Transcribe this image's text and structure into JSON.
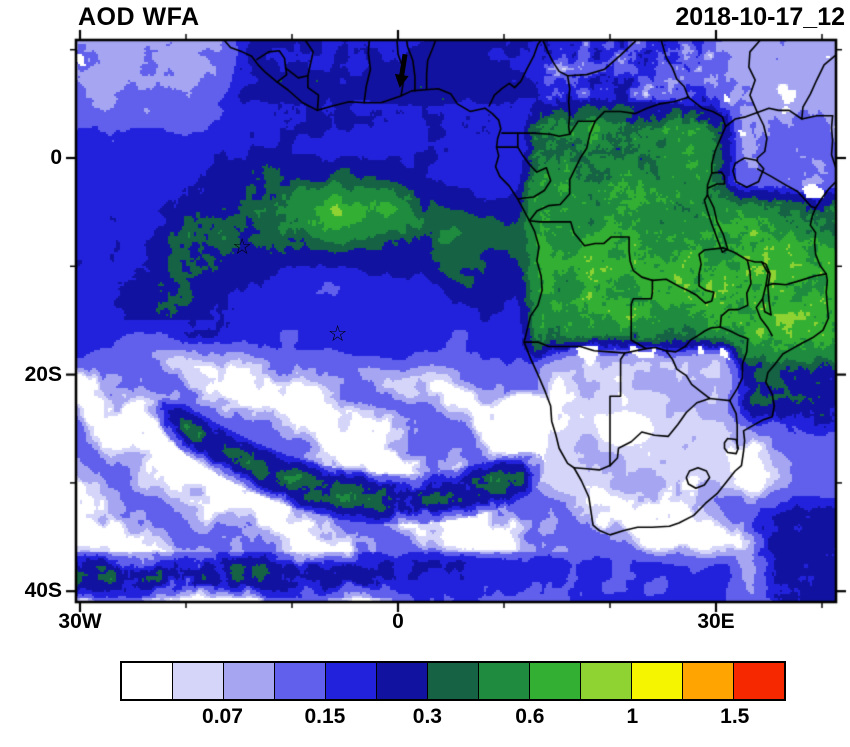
{
  "header": {
    "title": "AOD WFA",
    "date": "2018-10-17_12"
  },
  "map": {
    "projection": "lat-lon",
    "x_axis": {
      "ticks": [
        {
          "lon": -30,
          "label": "30W"
        },
        {
          "lon": 0,
          "label": "0"
        },
        {
          "lon": 30,
          "label": "30E"
        }
      ]
    },
    "y_axis": {
      "ticks": [
        {
          "lat": 0,
          "label": "0"
        },
        {
          "lat": -20,
          "label": "20S"
        },
        {
          "lat": -40,
          "label": "40S"
        }
      ]
    },
    "markers": [
      {
        "type": "star",
        "symbol": "☆",
        "lon": -14.7,
        "lat": -8.3
      },
      {
        "type": "star",
        "symbol": "☆",
        "lon": -5.7,
        "lat": -16.3
      },
      {
        "type": "arrow-down",
        "lon": 0.4,
        "lat": 9.7
      }
    ]
  },
  "colorbar": {
    "colors": [
      "#ffffff",
      "#d5d5f9",
      "#a5a5f2",
      "#6060ec",
      "#2222dc",
      "#1212a0",
      "#156245",
      "#1e8b3f",
      "#33b033",
      "#8ed332",
      "#f5f500",
      "#ffa400",
      "#f52800"
    ],
    "labels": [
      {
        "text": "0.07",
        "boundary_index": 2
      },
      {
        "text": "0.15",
        "boundary_index": 4
      },
      {
        "text": "0.3",
        "boundary_index": 6
      },
      {
        "text": "0.6",
        "boundary_index": 8
      },
      {
        "text": "1",
        "boundary_index": 10
      },
      {
        "text": "1.5",
        "boundary_index": 12
      }
    ]
  }
}
